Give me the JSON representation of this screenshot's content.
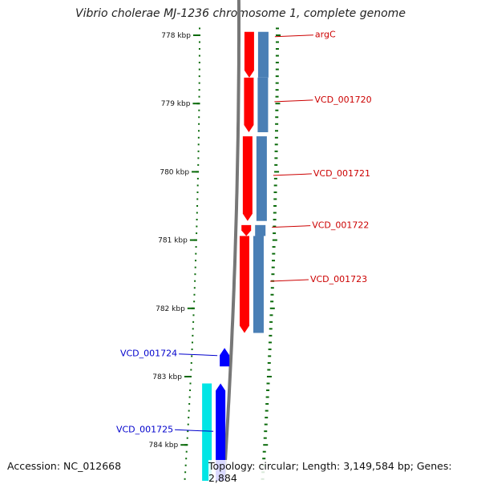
{
  "title": "Vibrio cholerae MJ-1236 chromosome 1, complete genome",
  "accession": "Accession: NC_012668",
  "summary": "Topology: circular; Length: 3,149,584 bp; Genes: 2,884",
  "colors": {
    "forward_gene": "#ff0000",
    "forward_cds": "#4a7fb5",
    "reverse_gene": "#0000ff",
    "reverse_cds": "#00e5e5",
    "backbone": "#777777",
    "ticks": "#0a6a0a",
    "forward_label": "#cc0000",
    "reverse_label": "#0000cc"
  },
  "ruler": [
    {
      "label": "778 kbp",
      "kbp": 778
    },
    {
      "label": "779 kbp",
      "kbp": 779
    },
    {
      "label": "780 kbp",
      "kbp": 780
    },
    {
      "label": "781 kbp",
      "kbp": 781
    },
    {
      "label": "782 kbp",
      "kbp": 782
    },
    {
      "label": "783 kbp",
      "kbp": 783
    },
    {
      "label": "784 kbp",
      "kbp": 784
    }
  ],
  "genes": [
    {
      "name": "argC",
      "strand": "+",
      "start_kbp": 777.95,
      "end_kbp": 778.62
    },
    {
      "name": "VCD_001720",
      "strand": "+",
      "start_kbp": 778.62,
      "end_kbp": 779.42
    },
    {
      "name": "VCD_001721",
      "strand": "+",
      "start_kbp": 779.48,
      "end_kbp": 780.72
    },
    {
      "name": "VCD_001722",
      "strand": "+",
      "start_kbp": 780.78,
      "end_kbp": 780.94
    },
    {
      "name": "VCD_001723",
      "strand": "+",
      "start_kbp": 780.94,
      "end_kbp": 782.36
    },
    {
      "name": "VCD_001724",
      "strand": "-",
      "start_kbp": 782.58,
      "end_kbp": 782.85
    },
    {
      "name": "VCD_001725",
      "strand": "-",
      "start_kbp": 783.1,
      "end_kbp": 784.55
    }
  ]
}
